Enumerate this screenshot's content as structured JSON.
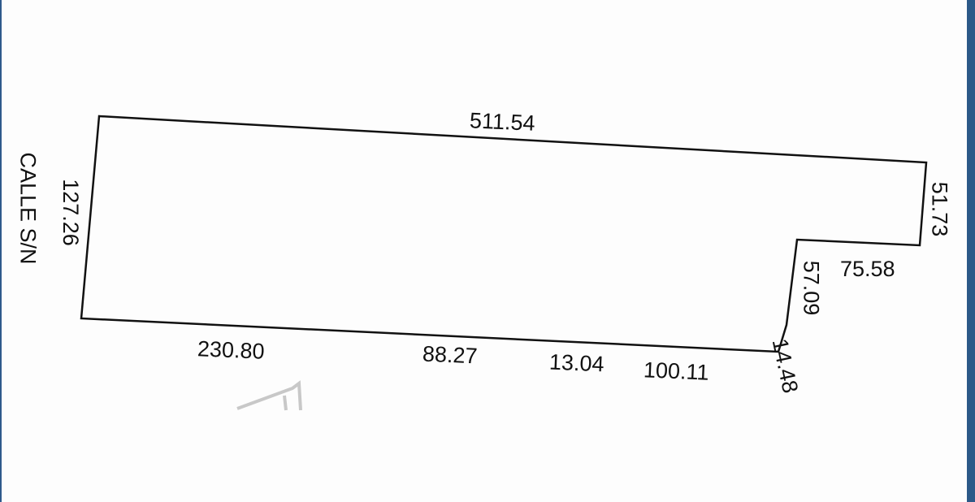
{
  "plot": {
    "street_label": "CALLE S/N",
    "measurements": {
      "top": "511.54",
      "left": "127.26",
      "right": "51.73",
      "notch_horizontal": "75.58",
      "notch_vertical": "57.09",
      "corner": "14.48",
      "bottom_1": "230.80",
      "bottom_2": "88.27",
      "bottom_3": "13.04",
      "bottom_4": "100.11"
    },
    "colors": {
      "line": "#111111",
      "frame": "#2c5988"
    }
  }
}
